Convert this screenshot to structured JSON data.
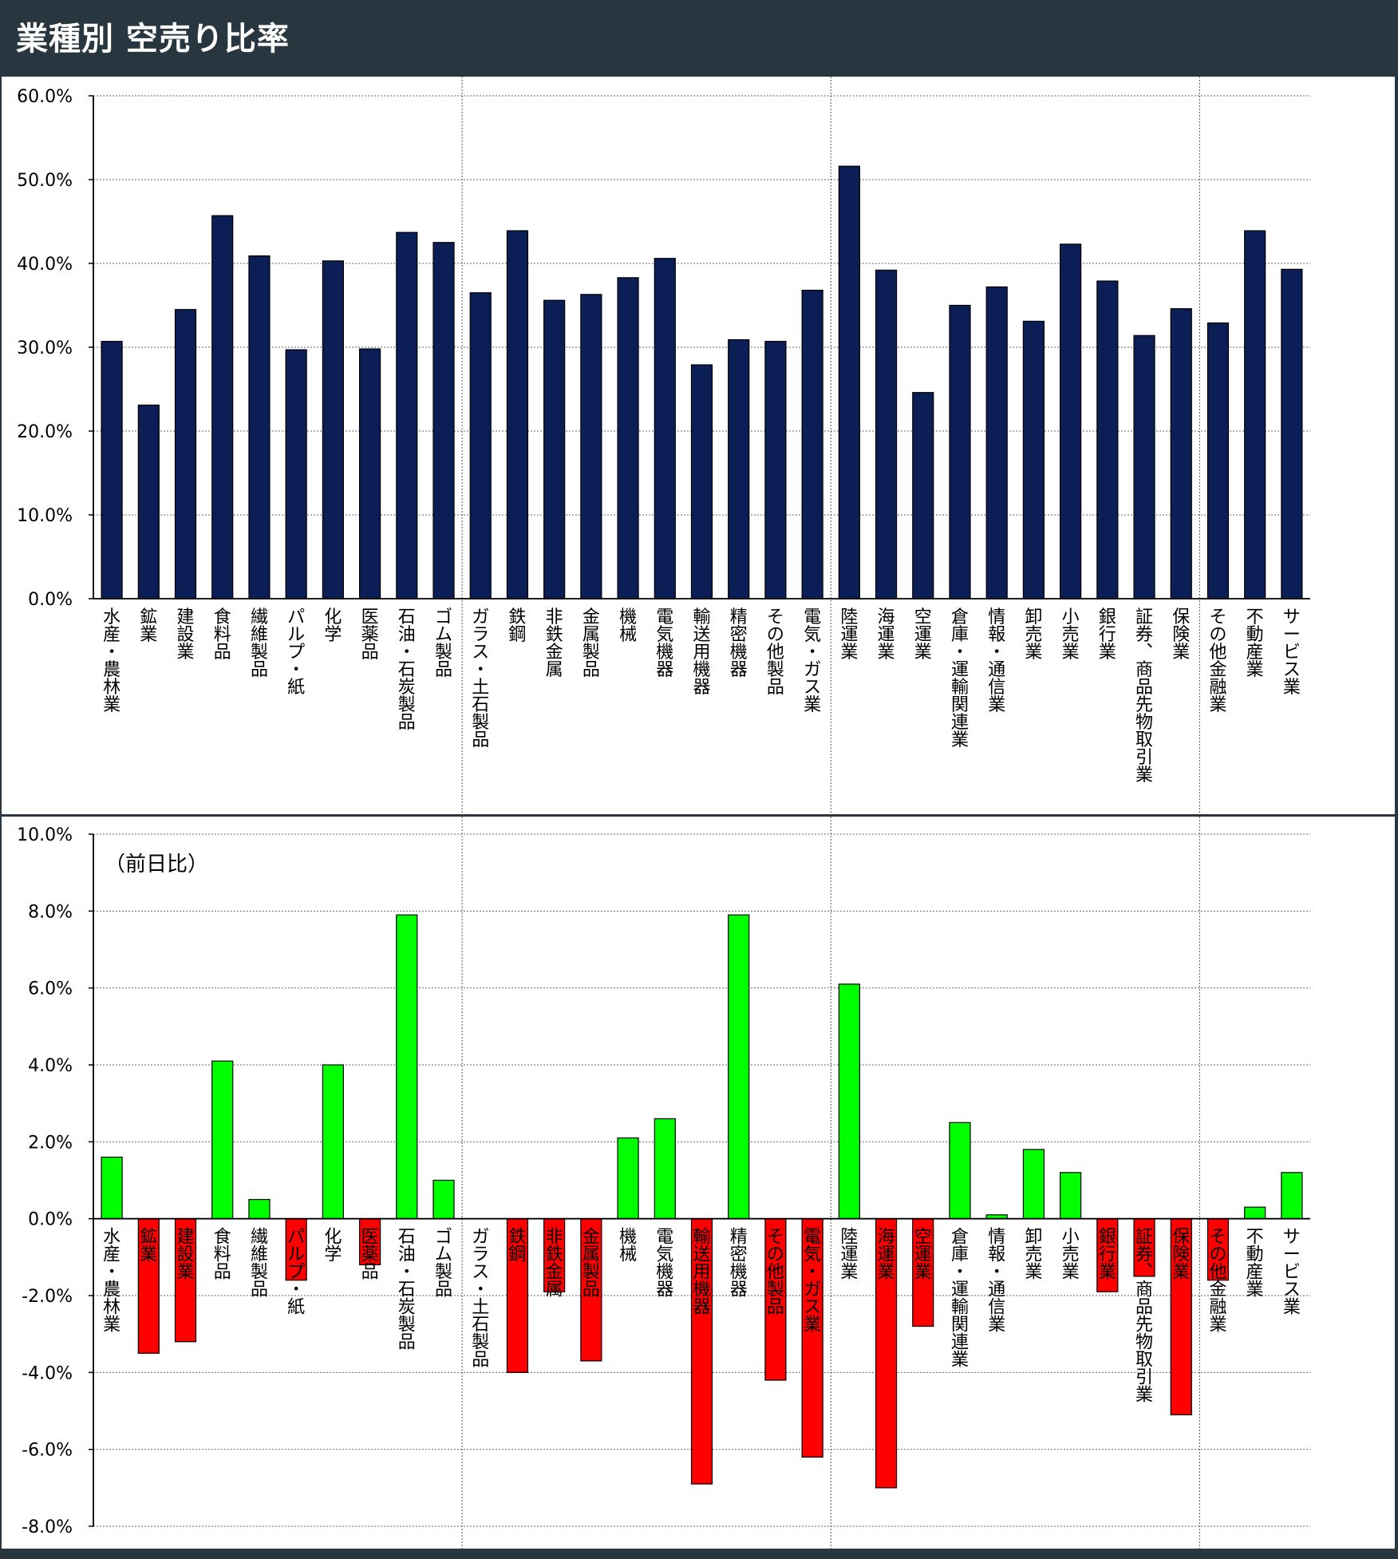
{
  "header": {
    "title": "業種別 空売り比率"
  },
  "categories": [
    "水産・農林業",
    "鉱業",
    "建設業",
    "食料品",
    "繊維製品",
    "パルプ・紙",
    "化学",
    "医薬品",
    "石油・石炭製品",
    "ゴム製品",
    "ガラス・土石製品",
    "鉄鋼",
    "非鉄金属",
    "金属製品",
    "機械",
    "電気機器",
    "輸送用機器",
    "精密機器",
    "その他製品",
    "電気・ガス業",
    "陸運業",
    "海運業",
    "空運業",
    "倉庫・運輸関連業",
    "情報・通信業",
    "卸売業",
    "小売業",
    "銀行業",
    "証券、商品先物取引業",
    "保険業",
    "その他金融業",
    "不動産業",
    "サービス業"
  ],
  "chart_data": [
    {
      "type": "bar",
      "title": "",
      "xlabel": "",
      "ylabel": "",
      "ylim": [
        0,
        60
      ],
      "yticks": [
        "60.0%",
        "50.0%",
        "40.0%",
        "30.0%",
        "20.0%",
        "10.0%",
        "0.0%"
      ],
      "yunit": "%",
      "grid": true,
      "bar_color": "#0b1f56",
      "values": [
        30.7,
        23.1,
        34.5,
        45.7,
        40.9,
        29.7,
        40.3,
        29.8,
        43.7,
        42.5,
        36.5,
        43.9,
        35.6,
        36.3,
        38.3,
        40.6,
        27.9,
        30.9,
        30.7,
        36.8,
        51.6,
        39.2,
        24.6,
        35.0,
        37.2,
        33.1,
        42.3,
        37.9,
        31.4,
        34.6,
        32.9,
        43.9,
        39.3
      ]
    },
    {
      "type": "bar",
      "title": "",
      "annotation": "（前日比）",
      "xlabel": "",
      "ylabel": "",
      "ylim": [
        -8,
        10
      ],
      "yticks": [
        "10.0%",
        "8.0%",
        "6.0%",
        "4.0%",
        "2.0%",
        "0.0%",
        "-2.0%",
        "-4.0%",
        "-6.0%",
        "-8.0%"
      ],
      "yunit": "%",
      "grid": true,
      "positive_color": "#00ff00",
      "negative_color": "#ff0000",
      "values": [
        1.6,
        -3.5,
        -3.2,
        4.1,
        0.5,
        -1.6,
        4.0,
        -1.2,
        7.9,
        1.0,
        0.0,
        -4.0,
        -1.9,
        -3.7,
        2.1,
        2.6,
        -6.9,
        7.9,
        -4.2,
        -6.2,
        6.1,
        -7.0,
        -2.8,
        2.5,
        0.1,
        1.8,
        1.2,
        -1.9,
        -1.5,
        -5.1,
        -1.6,
        0.3,
        1.2
      ]
    }
  ]
}
